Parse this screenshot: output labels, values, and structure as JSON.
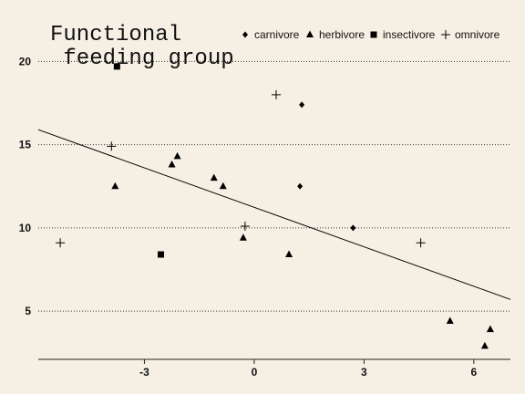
{
  "chart_data": {
    "type": "scatter",
    "title_lines": [
      "Functional",
      " feeding group"
    ],
    "xlabel": "",
    "ylabel": "",
    "xlim": [
      -5.9,
      7.0
    ],
    "ylim": [
      2.1,
      21.5
    ],
    "x_ticks": [
      -3,
      0,
      3,
      6
    ],
    "y_ticks": [
      5,
      10,
      15,
      20
    ],
    "grid": "horizontal dotted",
    "legend_position": "top-right",
    "series": [
      {
        "name": "carnivore",
        "marker": "diamond",
        "points": [
          [
            1.3,
            17.4
          ],
          [
            1.25,
            12.5
          ],
          [
            2.7,
            10.0
          ]
        ]
      },
      {
        "name": "herbivore",
        "marker": "triangle",
        "points": [
          [
            -3.8,
            12.5
          ],
          [
            -2.25,
            13.8
          ],
          [
            -2.1,
            14.3
          ],
          [
            -1.1,
            13.0
          ],
          [
            -0.85,
            12.5
          ],
          [
            -0.3,
            9.4
          ],
          [
            0.95,
            8.4
          ],
          [
            5.35,
            4.4
          ],
          [
            6.3,
            2.9
          ],
          [
            6.45,
            3.9
          ]
        ]
      },
      {
        "name": "insectivore",
        "marker": "square",
        "points": [
          [
            -3.75,
            19.7
          ],
          [
            -2.55,
            8.4
          ]
        ]
      },
      {
        "name": "omnivore",
        "marker": "plus",
        "points": [
          [
            -5.3,
            9.1
          ],
          [
            -3.9,
            14.9
          ],
          [
            -0.25,
            10.1
          ],
          [
            0.6,
            18.0
          ],
          [
            4.55,
            9.1
          ]
        ]
      }
    ],
    "fit_line": {
      "type": "linear",
      "x": [
        -5.9,
        7.0
      ],
      "y": [
        15.9,
        5.7
      ]
    }
  }
}
